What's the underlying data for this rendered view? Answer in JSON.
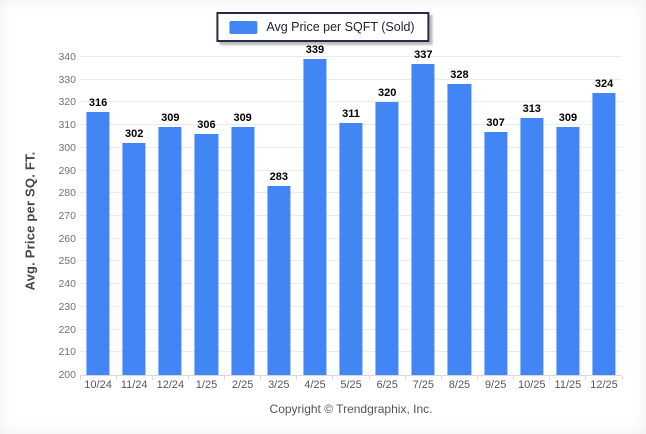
{
  "legend": {
    "label": "Avg Price per SQFT (Sold)"
  },
  "footer": {
    "copyright": "Copyright © Trendgraphix, Inc."
  },
  "colors": {
    "bar": "#4285F4",
    "gridline": "#ececec",
    "legend_border": "#262b46"
  },
  "chart_data": {
    "type": "bar",
    "title": "",
    "xlabel": "",
    "ylabel": "Avg. Price per SQ. FT.",
    "categories": [
      "10/24",
      "11/24",
      "12/24",
      "1/25",
      "2/25",
      "3/25",
      "4/25",
      "5/25",
      "6/25",
      "7/25",
      "8/25",
      "9/25",
      "10/25",
      "11/25",
      "12/25"
    ],
    "values": [
      316,
      302,
      309,
      306,
      309,
      283,
      339,
      311,
      320,
      337,
      328,
      307,
      313,
      309,
      324
    ],
    "series_name": "Avg Price per SQFT (Sold)",
    "ylim": [
      200,
      340
    ],
    "ytick_step": 10,
    "grid": "horizontal",
    "legend_position": "top-center",
    "value_labels": "above-bars"
  }
}
